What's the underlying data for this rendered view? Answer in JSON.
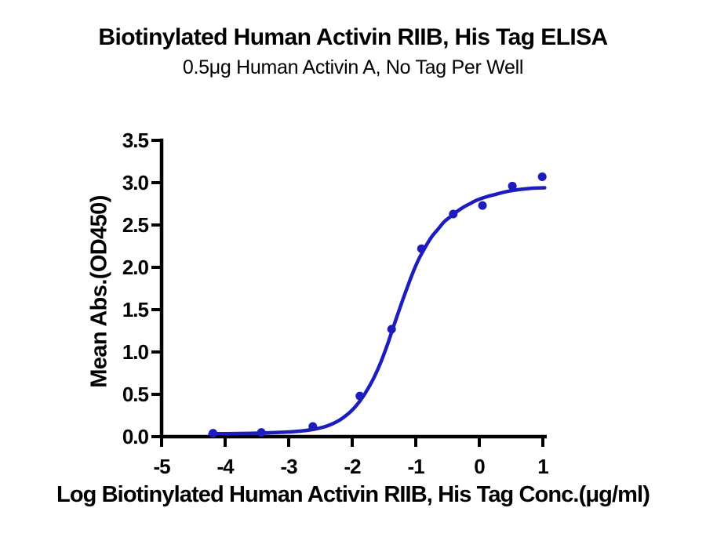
{
  "chart_data": {
    "type": "scatter",
    "subtype": "elisa-dose-response-with-sigmoidal-fit",
    "title": "Biotinylated Human Activin RIIB, His Tag ELISA",
    "subtitle": "0.5μg Human Activin A, No Tag Per Well",
    "xlabel": "Log Biotinylated Human Activin RIIB, His Tag Conc.(μg/ml)",
    "ylabel": "Mean Abs.(OD450)",
    "xlim": [
      -5,
      1
    ],
    "ylim": [
      0,
      3.5
    ],
    "x_tick_values": [
      -5,
      -4,
      -3,
      -2,
      -1,
      0,
      1
    ],
    "x_tick_labels": [
      "-5",
      "-4",
      "-3",
      "-2",
      "-1",
      "0",
      "1"
    ],
    "y_tick_values": [
      0,
      0.5,
      1,
      1.5,
      2,
      2.5,
      3,
      3.5
    ],
    "y_tick_labels": [
      "0.0",
      "0.5",
      "1.0",
      "1.5",
      "2.0",
      "2.5",
      "3.0",
      "3.5"
    ],
    "grid": false,
    "legend": null,
    "colors": {
      "series": "#1d1dbe",
      "axis": "#000000",
      "background": "#ffffff"
    },
    "series": [
      {
        "name": "Mean Abs.(OD450)",
        "marker": "circle",
        "color": "#1d1dbe",
        "points": [
          {
            "x": -4.19,
            "y": 0.04
          },
          {
            "x": -3.43,
            "y": 0.05
          },
          {
            "x": -2.62,
            "y": 0.12
          },
          {
            "x": -1.88,
            "y": 0.48
          },
          {
            "x": -1.38,
            "y": 1.27
          },
          {
            "x": -0.91,
            "y": 2.22
          },
          {
            "x": -0.41,
            "y": 2.63
          },
          {
            "x": 0.05,
            "y": 2.73
          },
          {
            "x": 0.52,
            "y": 2.96
          },
          {
            "x": 0.99,
            "y": 3.07
          }
        ]
      }
    ],
    "fit_curve": {
      "color": "#1d1dbe",
      "top_plateau": 2.94,
      "bottom_plateau": 0.03,
      "points": [
        [
          -4.24,
          0.033
        ],
        [
          -4.0,
          0.035
        ],
        [
          -3.8,
          0.037
        ],
        [
          -3.6,
          0.04
        ],
        [
          -3.4,
          0.044
        ],
        [
          -3.2,
          0.049
        ],
        [
          -3.0,
          0.056
        ],
        [
          -2.8,
          0.067
        ],
        [
          -2.6,
          0.088
        ],
        [
          -2.4,
          0.125
        ],
        [
          -2.2,
          0.195
        ],
        [
          -2.05,
          0.28
        ],
        [
          -1.95,
          0.355
        ],
        [
          -1.85,
          0.45
        ],
        [
          -1.75,
          0.57
        ],
        [
          -1.65,
          0.71
        ],
        [
          -1.55,
          0.88
        ],
        [
          -1.45,
          1.08
        ],
        [
          -1.35,
          1.3
        ],
        [
          -1.25,
          1.52
        ],
        [
          -1.15,
          1.73
        ],
        [
          -1.05,
          1.93
        ],
        [
          -0.95,
          2.1
        ],
        [
          -0.85,
          2.24
        ],
        [
          -0.75,
          2.36
        ],
        [
          -0.65,
          2.45
        ],
        [
          -0.55,
          2.54
        ],
        [
          -0.45,
          2.6
        ],
        [
          -0.35,
          2.66
        ],
        [
          -0.25,
          2.71
        ],
        [
          -0.15,
          2.75
        ],
        [
          -0.05,
          2.79
        ],
        [
          0.1,
          2.83
        ],
        [
          0.25,
          2.86
        ],
        [
          0.4,
          2.89
        ],
        [
          0.55,
          2.91
        ],
        [
          0.7,
          2.925
        ],
        [
          0.85,
          2.935
        ],
        [
          1.03,
          2.94
        ]
      ]
    }
  }
}
